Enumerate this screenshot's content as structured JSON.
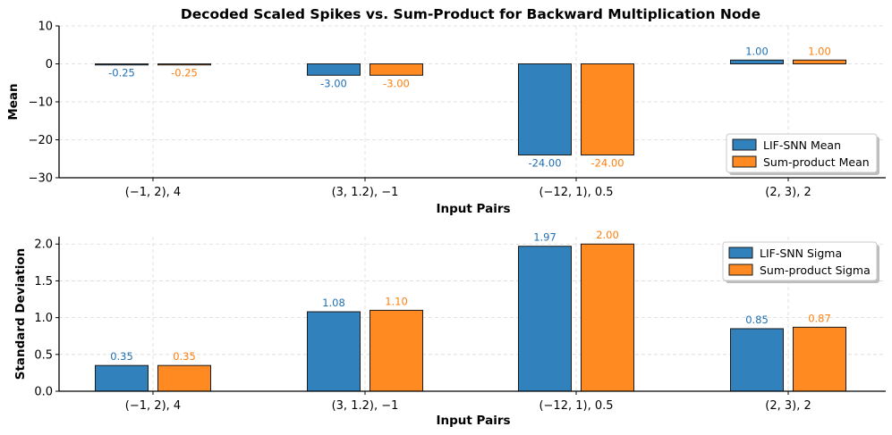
{
  "chart_data": {
    "type": "bar",
    "title": "Decoded Scaled Spikes vs. Sum-Product for Backward Multiplication Node",
    "categories": [
      "(−1, 2), 4",
      "(3, 1.2), −1",
      "(−12, 1), 0.5",
      "(2, 3), 2"
    ],
    "colors": {
      "lif": "#3181bd",
      "sum": "#ff8a22",
      "lif_text": "#1f6fb4",
      "sum_text": "#ff7f0e"
    },
    "panels": [
      {
        "xlabel": "Input Pairs",
        "ylabel": "Mean",
        "ylim": [
          -30,
          10
        ],
        "yticks": [
          10,
          0,
          -10,
          -20,
          -30
        ],
        "ytick_labels": [
          "10",
          "0",
          "−10",
          "−20",
          "−30"
        ],
        "legend": "bottom-right",
        "series": [
          {
            "name": "LIF-SNN Mean",
            "values": [
              -0.25,
              -3.0,
              -24.0,
              1.0
            ],
            "labels": [
              "-0.25",
              "-3.00",
              "-24.00",
              "1.00"
            ]
          },
          {
            "name": "Sum-product Mean",
            "values": [
              -0.25,
              -3.0,
              -24.0,
              1.0
            ],
            "labels": [
              "-0.25",
              "-3.00",
              "-24.00",
              "1.00"
            ]
          }
        ]
      },
      {
        "xlabel": "Input Pairs",
        "ylabel": "Standard Deviation",
        "ylim": [
          0,
          2.1
        ],
        "yticks": [
          0,
          0.5,
          1.0,
          1.5,
          2.0
        ],
        "ytick_labels": [
          "0.0",
          "0.5",
          "1.0",
          "1.5",
          "2.0"
        ],
        "legend": "top-right",
        "series": [
          {
            "name": "LIF-SNN Sigma",
            "values": [
              0.35,
              1.08,
              1.97,
              0.85
            ],
            "labels": [
              "0.35",
              "1.08",
              "1.97",
              "0.85"
            ]
          },
          {
            "name": "Sum-product Sigma",
            "values": [
              0.35,
              1.1,
              2.0,
              0.87
            ],
            "labels": [
              "0.35",
              "1.10",
              "2.00",
              "0.87"
            ]
          }
        ]
      }
    ]
  }
}
